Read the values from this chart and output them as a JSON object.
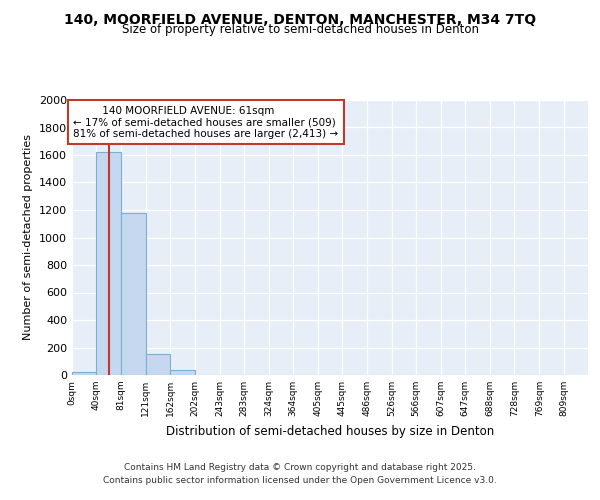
{
  "title_line1": "140, MOORFIELD AVENUE, DENTON, MANCHESTER, M34 7TQ",
  "title_line2": "Size of property relative to semi-detached houses in Denton",
  "xlabel": "Distribution of semi-detached houses by size in Denton",
  "ylabel": "Number of semi-detached properties",
  "bin_labels": [
    "0sqm",
    "40sqm",
    "81sqm",
    "121sqm",
    "162sqm",
    "202sqm",
    "243sqm",
    "283sqm",
    "324sqm",
    "364sqm",
    "405sqm",
    "445sqm",
    "486sqm",
    "526sqm",
    "566sqm",
    "607sqm",
    "647sqm",
    "688sqm",
    "728sqm",
    "769sqm",
    "809sqm"
  ],
  "bin_edges": [
    0,
    40,
    81,
    121,
    162,
    202,
    243,
    283,
    324,
    364,
    405,
    445,
    486,
    526,
    566,
    607,
    647,
    688,
    728,
    769,
    809
  ],
  "bar_heights": [
    25,
    1625,
    1175,
    150,
    35,
    0,
    0,
    0,
    0,
    0,
    0,
    0,
    0,
    0,
    0,
    0,
    0,
    0,
    0,
    0
  ],
  "bar_color": "#c5d8f0",
  "bar_edgecolor": "#7aafd4",
  "property_size": 61,
  "vline_color": "#c0392b",
  "annotation_title": "140 MOORFIELD AVENUE: 61sqm",
  "annotation_line1": "← 17% of semi-detached houses are smaller (509)",
  "annotation_line2": "81% of semi-detached houses are larger (2,413) →",
  "annotation_box_edgecolor": "#c0392b",
  "ylim": [
    0,
    2000
  ],
  "yticks": [
    0,
    200,
    400,
    600,
    800,
    1000,
    1200,
    1400,
    1600,
    1800,
    2000
  ],
  "footer_line1": "Contains HM Land Registry data © Crown copyright and database right 2025.",
  "footer_line2": "Contains public sector information licensed under the Open Government Licence v3.0.",
  "bg_color": "#ffffff",
  "plot_bg_color": "#e8eef8"
}
